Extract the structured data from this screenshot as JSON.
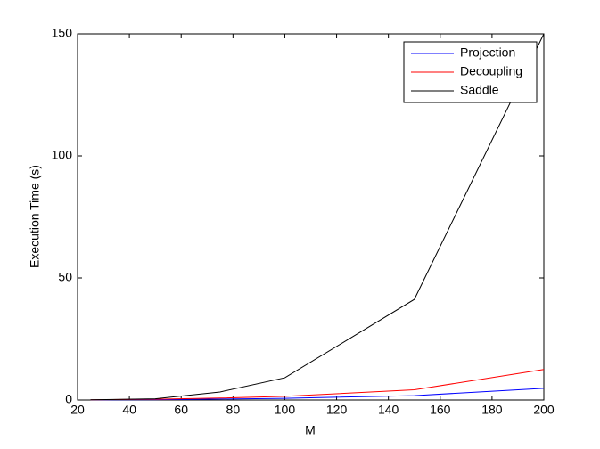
{
  "chart_data": {
    "type": "line",
    "x": [
      25,
      50,
      75,
      100,
      150,
      200
    ],
    "xlabel": "M",
    "ylabel": "Execution Time (s)",
    "xlim": [
      20,
      200
    ],
    "xticks": [
      20,
      40,
      60,
      80,
      100,
      120,
      140,
      160,
      180,
      200
    ],
    "ylim": [
      0,
      150
    ],
    "yticks": [
      0,
      50,
      100,
      150
    ],
    "legend": "top-right",
    "series": [
      {
        "name": "Projection",
        "color": "#0000ff",
        "values": [
          0.05,
          0.15,
          0.4,
          0.7,
          1.8,
          4.8
        ]
      },
      {
        "name": "Decoupling",
        "color": "#ff0000",
        "values": [
          0.1,
          0.3,
          0.8,
          1.5,
          4.2,
          12.5
        ]
      },
      {
        "name": "Saddle",
        "color": "#000000",
        "values": [
          0.1,
          0.5,
          3.3,
          9.1,
          41.2,
          150
        ]
      }
    ]
  }
}
